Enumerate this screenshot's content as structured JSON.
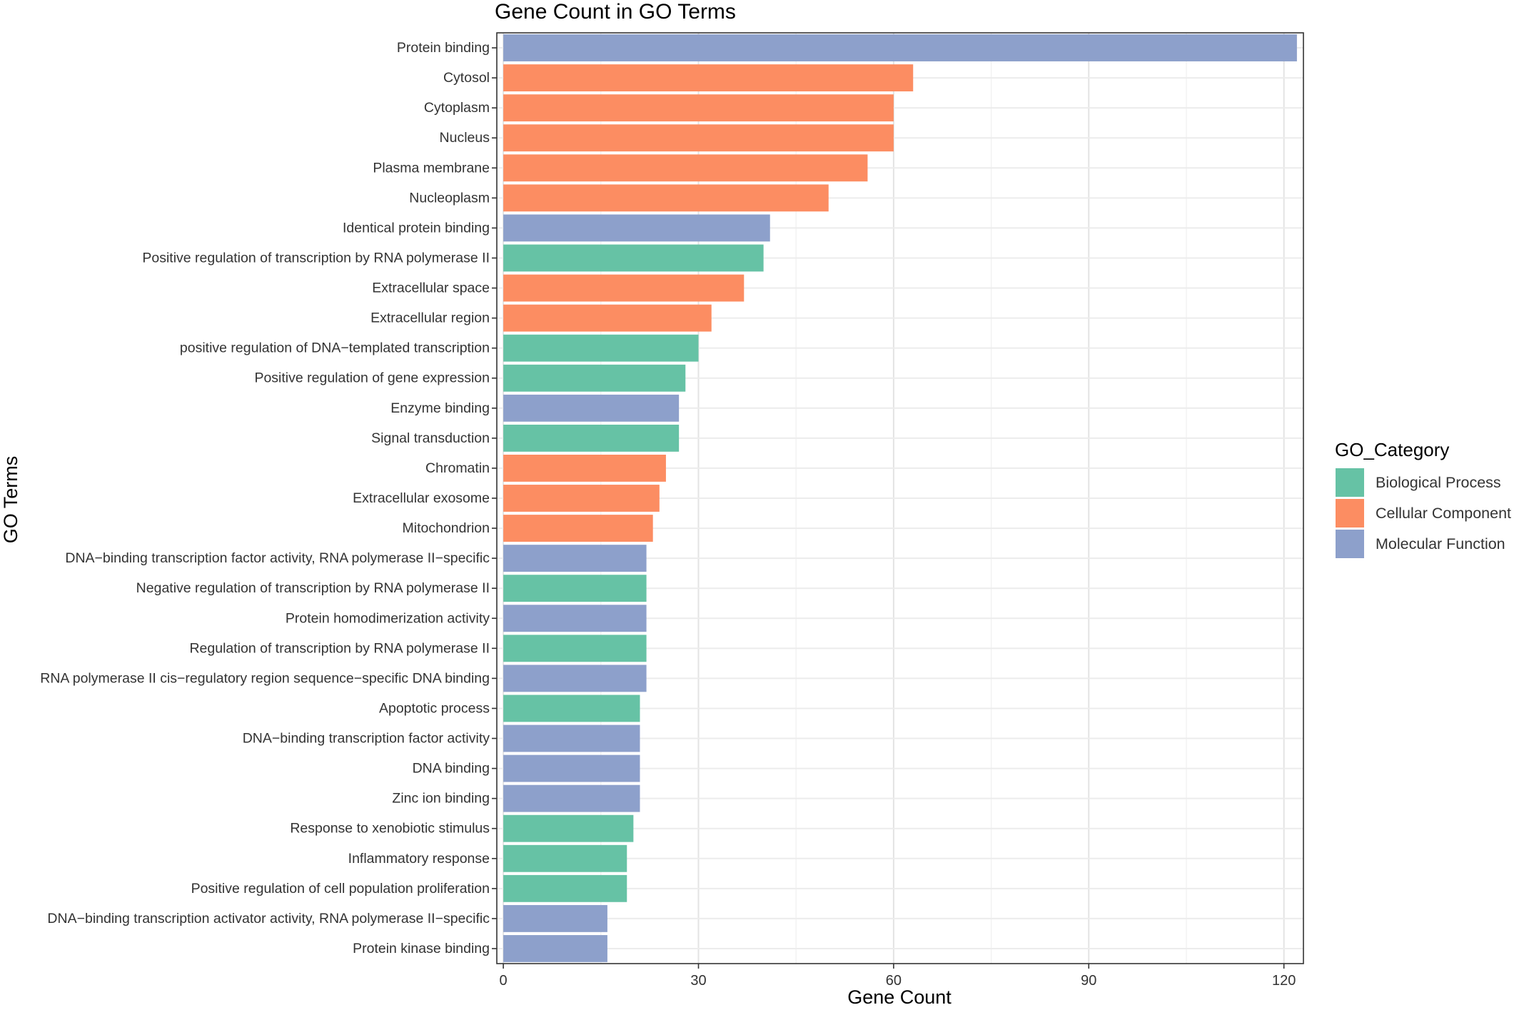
{
  "chart_data": {
    "type": "bar",
    "orientation": "horizontal",
    "title": "Gene Count in GO Terms",
    "xlabel": "Gene Count",
    "ylabel": "GO Terms",
    "xlim": [
      0,
      122
    ],
    "xticks": [
      0,
      30,
      60,
      90,
      120
    ],
    "grid": true,
    "legend": {
      "title": "GO_Category",
      "position": "right",
      "entries": [
        {
          "name": "Biological Process",
          "color": "#66C2A5"
        },
        {
          "name": "Cellular Component",
          "color": "#FC8D62"
        },
        {
          "name": "Molecular Function",
          "color": "#8DA0CB"
        }
      ]
    },
    "bars": [
      {
        "term": "Protein kinase binding",
        "value": 16,
        "category": "Molecular Function"
      },
      {
        "term": "DNA−binding transcription activator activity, RNA polymerase II−specific",
        "value": 16,
        "category": "Molecular Function"
      },
      {
        "term": "Positive regulation of cell population proliferation",
        "value": 19,
        "category": "Biological Process"
      },
      {
        "term": "Inflammatory response",
        "value": 19,
        "category": "Biological Process"
      },
      {
        "term": "Response to xenobiotic stimulus",
        "value": 20,
        "category": "Biological Process"
      },
      {
        "term": "Zinc ion binding",
        "value": 21,
        "category": "Molecular Function"
      },
      {
        "term": "DNA binding",
        "value": 21,
        "category": "Molecular Function"
      },
      {
        "term": "DNA−binding transcription factor activity",
        "value": 21,
        "category": "Molecular Function"
      },
      {
        "term": "Apoptotic process",
        "value": 21,
        "category": "Biological Process"
      },
      {
        "term": "RNA polymerase II cis−regulatory region sequence−specific DNA binding",
        "value": 22,
        "category": "Molecular Function"
      },
      {
        "term": "Regulation of transcription by RNA polymerase II",
        "value": 22,
        "category": "Biological Process"
      },
      {
        "term": "Protein homodimerization activity",
        "value": 22,
        "category": "Molecular Function"
      },
      {
        "term": "Negative regulation of transcription by RNA polymerase II",
        "value": 22,
        "category": "Biological Process"
      },
      {
        "term": "DNA−binding transcription factor activity, RNA polymerase II−specific",
        "value": 22,
        "category": "Molecular Function"
      },
      {
        "term": "Mitochondrion",
        "value": 23,
        "category": "Cellular Component"
      },
      {
        "term": "Extracellular exosome",
        "value": 24,
        "category": "Cellular Component"
      },
      {
        "term": "Chromatin",
        "value": 25,
        "category": "Cellular Component"
      },
      {
        "term": "Signal transduction",
        "value": 27,
        "category": "Biological Process"
      },
      {
        "term": "Enzyme binding",
        "value": 27,
        "category": "Molecular Function"
      },
      {
        "term": "Positive regulation of gene expression",
        "value": 28,
        "category": "Biological Process"
      },
      {
        "term": "positive regulation of DNA−templated transcription",
        "value": 30,
        "category": "Biological Process"
      },
      {
        "term": "Extracellular region",
        "value": 32,
        "category": "Cellular Component"
      },
      {
        "term": "Extracellular space",
        "value": 37,
        "category": "Cellular Component"
      },
      {
        "term": "Positive regulation of transcription by RNA polymerase II",
        "value": 40,
        "category": "Biological Process"
      },
      {
        "term": "Identical protein binding",
        "value": 41,
        "category": "Molecular Function"
      },
      {
        "term": "Nucleoplasm",
        "value": 50,
        "category": "Cellular Component"
      },
      {
        "term": "Plasma membrane",
        "value": 56,
        "category": "Cellular Component"
      },
      {
        "term": "Nucleus",
        "value": 60,
        "category": "Cellular Component"
      },
      {
        "term": "Cytoplasm",
        "value": 60,
        "category": "Cellular Component"
      },
      {
        "term": "Cytosol",
        "value": 63,
        "category": "Cellular Component"
      },
      {
        "term": "Protein binding",
        "value": 122,
        "category": "Molecular Function"
      }
    ]
  }
}
